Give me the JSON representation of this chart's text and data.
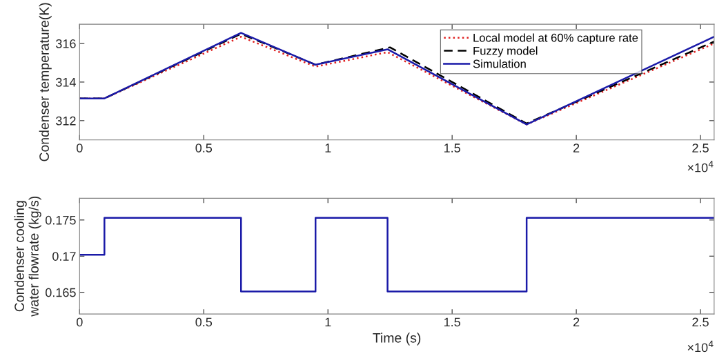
{
  "chart_data": [
    {
      "type": "line",
      "ylabel": "Condenser temperature(K)",
      "xlim": [
        0,
        2.555
      ],
      "ylim": [
        311,
        317
      ],
      "xticks": [
        0,
        0.5,
        1,
        1.5,
        2,
        2.5
      ],
      "yticks": [
        312,
        314,
        316
      ],
      "legend": "top right",
      "grid": false,
      "annotations": [
        "×10$^{4}$"
      ],
      "series": [
        {
          "name": "Local model at 60% capture rate",
          "color": "#e02020",
          "line_style": "dotted",
          "x": [
            0,
            0.1,
            0.65,
            0.95,
            1.24,
            1.8,
            2.555
          ],
          "values": [
            313.15,
            313.15,
            316.35,
            314.8,
            315.55,
            311.8,
            316.0
          ]
        },
        {
          "name": "Fuzzy model",
          "color": "#000000",
          "line_style": "dashed",
          "x": [
            0,
            0.1,
            0.65,
            0.95,
            1.25,
            1.8,
            2.555
          ],
          "values": [
            313.15,
            313.15,
            316.5,
            314.9,
            315.8,
            311.85,
            316.1
          ]
        },
        {
          "name": "Simulation",
          "color": "#1a1aa8",
          "line_style": "solid",
          "x": [
            0,
            0.1,
            0.65,
            0.95,
            1.24,
            1.8,
            2.555
          ],
          "values": [
            313.15,
            313.15,
            316.55,
            314.9,
            315.7,
            311.8,
            316.35
          ]
        }
      ]
    },
    {
      "type": "step",
      "xlabel": "Time (s)",
      "ylabel": "Condenser cooling\nwater flowrate (kg/s)",
      "xlim": [
        0,
        2.555
      ],
      "ylim": [
        0.162,
        0.178
      ],
      "xticks": [
        0,
        0.5,
        1,
        1.5,
        2,
        2.5
      ],
      "yticks": [
        0.165,
        0.17,
        0.175
      ],
      "grid": false,
      "annotations": [
        "×10$^{4}$"
      ],
      "series": [
        {
          "color": "#1a1aa8",
          "line_style": "solid",
          "x": [
            0,
            0.1,
            0.65,
            0.95,
            1.24,
            1.8,
            2.555
          ],
          "values": [
            0.1702,
            0.1753,
            0.1651,
            0.1753,
            0.1651,
            0.1753,
            0.1753
          ]
        }
      ]
    }
  ]
}
